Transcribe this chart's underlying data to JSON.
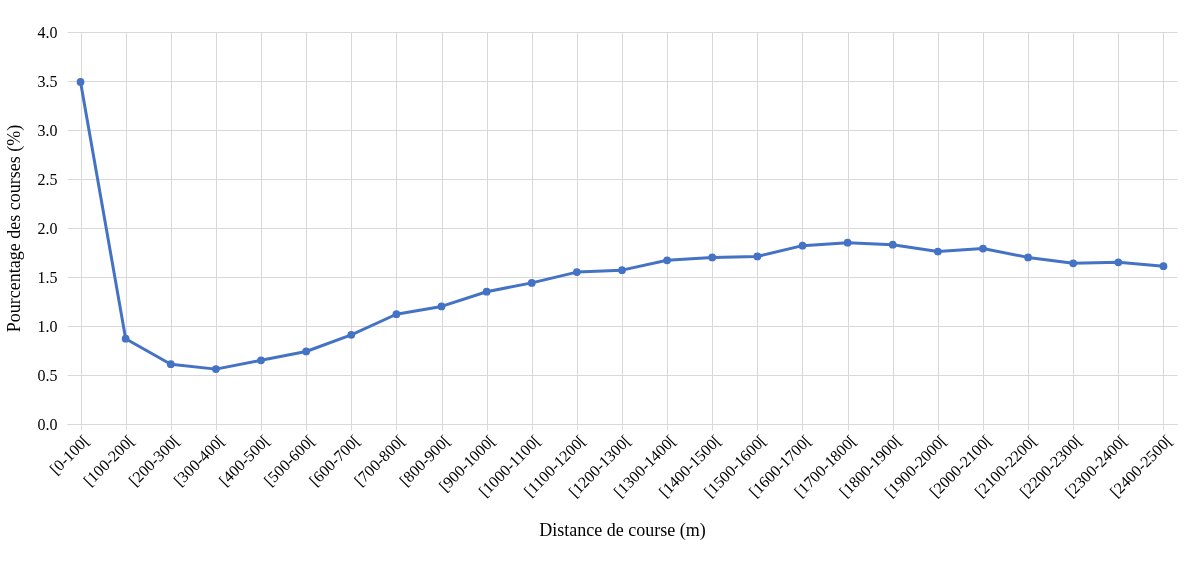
{
  "chart_data": {
    "type": "line",
    "xlabel": "Distance de course (m)",
    "ylabel": "Pourcentage des courses (%)",
    "categories": [
      "[0-100[",
      "[100-200[",
      "[200-300[",
      "[300-400[",
      "[400-500[",
      "[500-600[",
      "[600-700[",
      "[700-800[",
      "[800-900[",
      "[900-1000[",
      "[1000-1100[",
      "[1100-1200[",
      "[1200-1300[",
      "[1300-1400[",
      "[1400-1500[",
      "[1500-1600[",
      "[1600-1700[",
      "[1700-1800[",
      "[1800-1900[",
      "[1900-2000[",
      "[2000-2100[",
      "[2100-2200[",
      "[2200-2300[",
      "[2300-2400[",
      "[2400-2500["
    ],
    "series": [
      {
        "color": "#4472c4",
        "values": [
          3.49,
          0.87,
          0.61,
          0.56,
          0.65,
          0.74,
          0.91,
          1.12,
          1.2,
          1.35,
          1.44,
          1.55,
          1.57,
          1.67,
          1.7,
          1.71,
          1.82,
          1.85,
          1.83,
          1.76,
          1.79,
          1.7,
          1.64,
          1.65,
          1.61
        ]
      }
    ],
    "ylim": [
      0,
      4
    ],
    "yticks": [
      {
        "value": 0,
        "label": "0.0"
      },
      {
        "value": 0.5,
        "label": "0.5"
      },
      {
        "value": 1,
        "label": "1.0"
      },
      {
        "value": 1.5,
        "label": "1.5"
      },
      {
        "value": 2,
        "label": "2.0"
      },
      {
        "value": 2.5,
        "label": "2.5"
      },
      {
        "value": 3,
        "label": "3.0"
      },
      {
        "value": 3.5,
        "label": "3.5"
      },
      {
        "value": 4,
        "label": "4.0"
      }
    ],
    "grid": true,
    "marker": "circle",
    "line_style": "solid"
  }
}
